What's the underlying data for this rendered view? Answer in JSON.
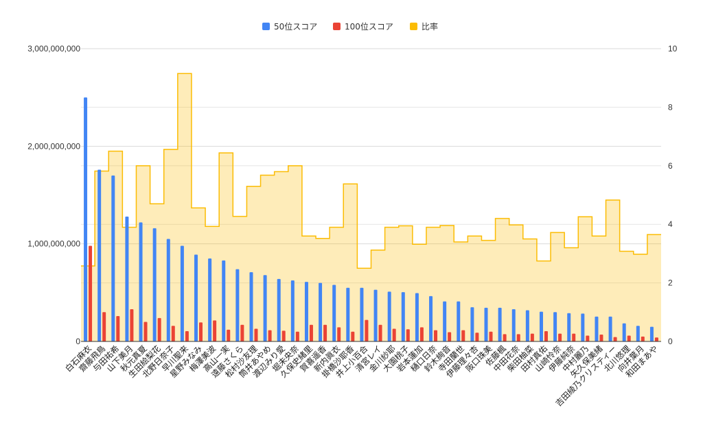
{
  "chart_data": {
    "type": "bar",
    "title": "",
    "xlabel": "",
    "ylabel": "",
    "legend_position": "top",
    "grid": true,
    "categories": [
      "白石麻衣",
      "齋藤飛鳥",
      "与田祐希",
      "山下美月",
      "秋元真夏",
      "生田絵梨花",
      "北野日奈子",
      "早川聖来",
      "星野みなみ",
      "梅澤美波",
      "高山一実",
      "遠藤さくら",
      "松村沙友理",
      "筒井あやめ",
      "渡辺みり愛",
      "堀未央奈",
      "久保史緒里",
      "賀喜遥香",
      "新内眞衣",
      "掛橋沙耶香",
      "井上小百合",
      "清宮レイ",
      "金川紗耶",
      "大園桃子",
      "岩本蓮加",
      "樋口日奈",
      "鈴木絢音",
      "寺田蘭世",
      "伊藤理々杏",
      "阪口珠美",
      "佐藤楓",
      "中田花奈",
      "柴田柚菜",
      "田村真佑",
      "山崎怜奈",
      "伊藤純奈",
      "中村麗乃",
      "矢久保美緒",
      "吉田綾乃クリスティー",
      "北川悠理",
      "向井葉月",
      "和田まあや"
    ],
    "y_left": {
      "min": 0,
      "max": 3000000000,
      "ticks": [
        "0",
        "1,000,000,000",
        "2,000,000,000",
        "3,000,000,000"
      ]
    },
    "y_right": {
      "min": 0,
      "max": 10,
      "ticks": [
        "0",
        "2",
        "4",
        "6",
        "8",
        "10"
      ]
    },
    "series": [
      {
        "name": "50位スコア",
        "kind": "bar",
        "axis": "left",
        "color": "#4285f4",
        "values": [
          2500000000,
          1760000000,
          1700000000,
          1280000000,
          1220000000,
          1160000000,
          1050000000,
          980000000,
          890000000,
          850000000,
          830000000,
          740000000,
          710000000,
          680000000,
          640000000,
          625000000,
          610000000,
          600000000,
          580000000,
          550000000,
          550000000,
          530000000,
          510000000,
          505000000,
          495000000,
          465000000,
          410000000,
          410000000,
          350000000,
          345000000,
          345000000,
          330000000,
          320000000,
          305000000,
          300000000,
          290000000,
          285000000,
          255000000,
          255000000,
          185000000,
          160000000,
          150000000
        ]
      },
      {
        "name": "100位スコア",
        "kind": "bar",
        "axis": "left",
        "color": "#ea4335",
        "values": [
          980000000,
          300000000,
          260000000,
          330000000,
          200000000,
          240000000,
          160000000,
          105000000,
          195000000,
          215000000,
          120000000,
          170000000,
          130000000,
          115000000,
          110000000,
          100000000,
          170000000,
          170000000,
          145000000,
          100000000,
          220000000,
          170000000,
          130000000,
          125000000,
          145000000,
          115000000,
          95000000,
          115000000,
          90000000,
          100000000,
          75000000,
          75000000,
          80000000,
          105000000,
          80000000,
          80000000,
          60000000,
          70000000,
          45000000,
          60000000,
          50000000,
          40000000
        ]
      },
      {
        "name": "比率",
        "kind": "area",
        "axis": "right",
        "color": "#fbbc04",
        "values": [
          2.58,
          5.82,
          6.5,
          3.9,
          6.0,
          4.7,
          6.56,
          9.15,
          4.56,
          3.93,
          6.44,
          4.27,
          5.3,
          5.68,
          5.8,
          6.0,
          3.6,
          3.52,
          3.9,
          5.38,
          2.5,
          3.12,
          3.9,
          3.95,
          3.32,
          3.9,
          3.96,
          3.4,
          3.6,
          3.45,
          4.2,
          3.98,
          3.5,
          2.75,
          3.72,
          3.2,
          4.26,
          3.6,
          4.83,
          3.08,
          2.98,
          3.65
        ]
      }
    ]
  }
}
